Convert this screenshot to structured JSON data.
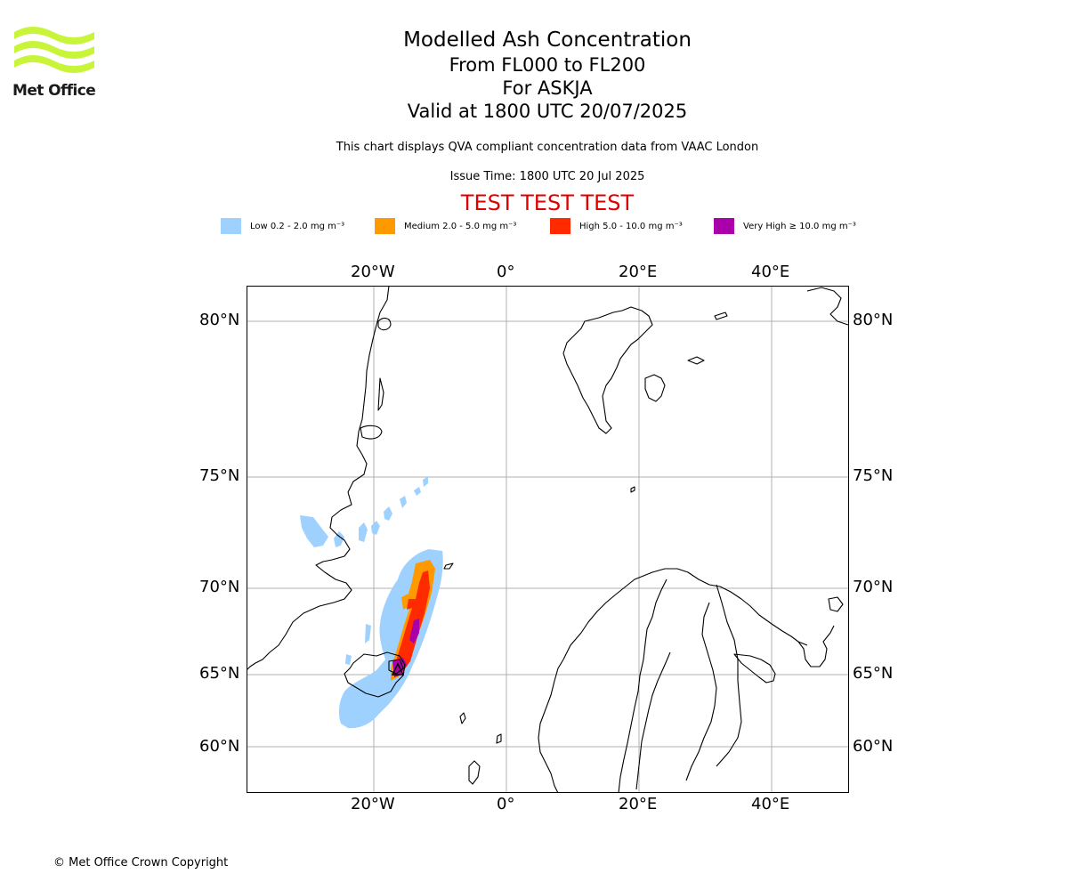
{
  "logo": {
    "text": "Met Office",
    "color": "#c8f53a"
  },
  "header": {
    "title": "Modelled Ash Concentration",
    "level_range": "From FL000 to FL200",
    "volcano": "For ASKJA",
    "valid_time": "Valid at 1800 UTC 20/07/2025"
  },
  "compliance_note": "This chart displays QVA compliant concentration data from VAAC London",
  "issue_time": "Issue Time: 1800 UTC 20 Jul 2025",
  "test_banner": "TEST TEST TEST",
  "legend": [
    {
      "label": "Low 0.2 - 2.0 mg m⁻³",
      "color": "#9fd1ff"
    },
    {
      "label": "Medium 2.0 - 5.0 mg m⁻³",
      "color": "#ff9900"
    },
    {
      "label": "High 5.0 - 10.0 mg m⁻³",
      "color": "#ff2a00"
    },
    {
      "label": "Very High ≥ 10.0 mg m⁻³",
      "color": "#aa00aa"
    }
  ],
  "map": {
    "longitude_labels": [
      "20°W",
      "0°",
      "20°E",
      "40°E"
    ],
    "latitude_labels": [
      "80°N",
      "75°N",
      "70°N",
      "65°N",
      "60°N"
    ],
    "gridlines": true
  },
  "copyright": "© Met Office Crown Copyright"
}
